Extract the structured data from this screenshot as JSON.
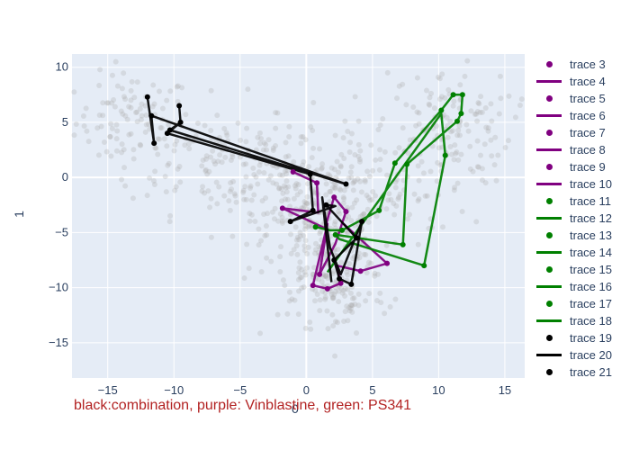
{
  "chart_data": {
    "type": "scatter",
    "xlabel": "0",
    "ylabel": "1",
    "xlim": [
      -17.7,
      16.5
    ],
    "ylim": [
      -18.2,
      11.2
    ],
    "x_ticks": [
      -15,
      -10,
      -5,
      0,
      5,
      10,
      15
    ],
    "y_ticks": [
      -15,
      -10,
      -5,
      0,
      5,
      10
    ],
    "grid": true,
    "legend_position": "right",
    "caption": "black:combination, purple: Vinblastine, green: PS341",
    "colors": {
      "plot_bg": "#e5ecf6",
      "grid": "#ffffff",
      "background_points": "#a9a9a9",
      "purple": "#800080",
      "green": "#008000",
      "black": "#000000",
      "caption": "#b22222",
      "text": "#2a3f5f"
    },
    "background_clusters": [
      {
        "center": [
          -13,
          5
        ],
        "spread": [
          2.2,
          2.2
        ],
        "count": 100
      },
      {
        "center": [
          -7,
          2
        ],
        "spread": [
          3.2,
          2.6
        ],
        "count": 110
      },
      {
        "center": [
          -2,
          -1
        ],
        "spread": [
          2.6,
          2.4
        ],
        "count": 120
      },
      {
        "center": [
          1.5,
          -5
        ],
        "spread": [
          2.2,
          3.6
        ],
        "count": 260
      },
      {
        "center": [
          2.5,
          -10.5
        ],
        "spread": [
          1.8,
          2.0
        ],
        "count": 80
      },
      {
        "center": [
          10.5,
          4.5
        ],
        "spread": [
          2.6,
          2.6
        ],
        "count": 140
      },
      {
        "center": [
          6,
          -1
        ],
        "spread": [
          3.0,
          3.2
        ],
        "count": 90
      }
    ],
    "series": [
      {
        "name": "trace 3",
        "mode": "markers",
        "color": "#800080",
        "points": [
          [
            -1,
            0.5
          ],
          [
            0.8,
            -0.5
          ],
          [
            -1.8,
            -2.8
          ],
          [
            2.1,
            -1.8
          ],
          [
            3,
            -3.1
          ],
          [
            1,
            -8.8
          ],
          [
            0.5,
            -9.8
          ],
          [
            1.6,
            -10.1
          ],
          [
            2.6,
            -9.6
          ],
          [
            4.1,
            -8.5
          ],
          [
            6.1,
            -7.8
          ]
        ]
      },
      {
        "name": "trace 4",
        "mode": "lines",
        "color": "#800080",
        "points": [
          [
            -1,
            0.5
          ],
          [
            0.8,
            -0.5
          ],
          [
            0.9,
            -3.2
          ],
          [
            -1.8,
            -2.8
          ],
          [
            1.4,
            -4.6
          ],
          [
            2.1,
            -1.8
          ],
          [
            3,
            -3.1
          ],
          [
            2.2,
            -6.0
          ],
          [
            1,
            -8.8
          ],
          [
            1.6,
            -4.2
          ],
          [
            0.5,
            -9.8
          ],
          [
            1.6,
            -10.1
          ],
          [
            2.6,
            -9.6
          ],
          [
            2.3,
            -8.0
          ],
          [
            4.1,
            -8.5
          ],
          [
            6.1,
            -7.8
          ],
          [
            2.8,
            -4.2
          ]
        ]
      },
      {
        "name": "trace 5",
        "mode": "markers",
        "color": "#800080",
        "points": []
      },
      {
        "name": "trace 6",
        "mode": "lines",
        "color": "#800080",
        "points": []
      },
      {
        "name": "trace 7",
        "mode": "markers",
        "color": "#800080",
        "points": []
      },
      {
        "name": "trace 8",
        "mode": "lines",
        "color": "#800080",
        "points": []
      },
      {
        "name": "trace 9",
        "mode": "markers",
        "color": "#800080",
        "points": []
      },
      {
        "name": "trace 10",
        "mode": "lines",
        "color": "#800080",
        "points": []
      },
      {
        "name": "trace 11",
        "mode": "markers",
        "color": "#008000",
        "points": [
          [
            0.7,
            -4.5
          ],
          [
            2.7,
            -4.8
          ],
          [
            5.5,
            -3
          ],
          [
            6.7,
            1.3
          ],
          [
            7.6,
            1.2
          ],
          [
            10.2,
            6.1
          ],
          [
            11.1,
            7.5
          ],
          [
            11.8,
            7.5
          ],
          [
            11.7,
            5.8
          ],
          [
            11.4,
            5.1
          ],
          [
            10.5,
            2
          ],
          [
            8.9,
            -8
          ],
          [
            7.3,
            -6.1
          ],
          [
            2.2,
            -5.2
          ]
        ]
      },
      {
        "name": "trace 12",
        "mode": "lines",
        "color": "#008000",
        "points": [
          [
            0.7,
            -4.5
          ],
          [
            1.8,
            -4.8
          ],
          [
            2.7,
            -4.8
          ],
          [
            5.5,
            -3
          ],
          [
            6.7,
            1.3
          ],
          [
            10.2,
            6.1
          ],
          [
            11.1,
            7.5
          ],
          [
            11.8,
            7.5
          ],
          [
            11.7,
            5.8
          ],
          [
            11.4,
            5.1
          ],
          [
            7.6,
            1.2
          ],
          [
            7.3,
            -6.1
          ],
          [
            2.2,
            -5.2
          ],
          [
            2.5,
            -5.6
          ],
          [
            8.9,
            -8
          ],
          [
            10.5,
            2
          ],
          [
            10.2,
            5.8
          ],
          [
            1.6,
            -8.6
          ]
        ]
      },
      {
        "name": "trace 13",
        "mode": "markers",
        "color": "#008000",
        "points": []
      },
      {
        "name": "trace 14",
        "mode": "lines",
        "color": "#008000",
        "points": []
      },
      {
        "name": "trace 15",
        "mode": "markers",
        "color": "#008000",
        "points": []
      },
      {
        "name": "trace 16",
        "mode": "lines",
        "color": "#008000",
        "points": []
      },
      {
        "name": "trace 17",
        "mode": "markers",
        "color": "#008000",
        "points": []
      },
      {
        "name": "trace 18",
        "mode": "lines",
        "color": "#008000",
        "points": []
      },
      {
        "name": "trace 19",
        "mode": "markers",
        "color": "#000000",
        "points": [
          [
            -12,
            7.3
          ],
          [
            -11.7,
            5.6
          ],
          [
            -11.5,
            3.1
          ],
          [
            -9.6,
            6.5
          ],
          [
            -9.5,
            5
          ],
          [
            -10.5,
            4
          ],
          [
            -10.3,
            4.3
          ],
          [
            0.3,
            0.3
          ],
          [
            3,
            -0.6
          ],
          [
            -1.2,
            -4
          ],
          [
            0.5,
            -3
          ],
          [
            1.5,
            -2.5
          ],
          [
            2.1,
            -7.5
          ],
          [
            2.5,
            -9.2
          ],
          [
            3.4,
            -9.7
          ],
          [
            3.8,
            -5.5
          ],
          [
            4.2,
            -4
          ]
        ]
      },
      {
        "name": "trace 20",
        "mode": "lines",
        "color": "#000000",
        "points": [
          [
            -12,
            7.3
          ],
          [
            -11.5,
            3.1
          ],
          [
            -11.7,
            5.6
          ],
          [
            3,
            -0.6
          ],
          [
            -10.3,
            4.3
          ],
          [
            -9.5,
            5
          ],
          [
            -9.6,
            6.5
          ],
          [
            -9.5,
            5
          ],
          [
            -10.5,
            4
          ],
          [
            0.3,
            0.3
          ],
          [
            0.5,
            -3
          ],
          [
            -1.2,
            -4
          ],
          [
            2.2,
            -2.6
          ],
          [
            1.5,
            -2.5
          ],
          [
            3.8,
            -5.5
          ],
          [
            2.1,
            -7.5
          ],
          [
            2.5,
            -9.2
          ],
          [
            3.4,
            -9.7
          ],
          [
            4.2,
            -4
          ],
          [
            2.6,
            -8.8
          ],
          [
            1.8,
            -6.4
          ],
          [
            1.2,
            -1.8
          ],
          [
            1.9,
            -9.5
          ]
        ]
      },
      {
        "name": "trace 21",
        "mode": "markers",
        "color": "#000000",
        "points": []
      }
    ]
  }
}
